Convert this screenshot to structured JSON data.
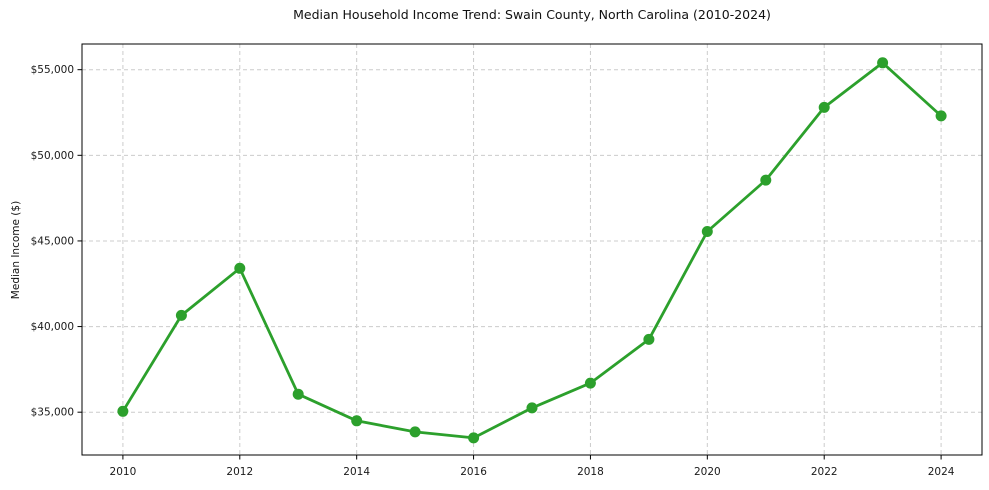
{
  "chart_data": {
    "type": "line",
    "title": "Median Household Income Trend: Swain County, North Carolina (2010-2024)",
    "xlabel": "",
    "ylabel": "Median Income ($)",
    "x": [
      2010,
      2011,
      2012,
      2013,
      2014,
      2015,
      2016,
      2017,
      2018,
      2019,
      2020,
      2021,
      2022,
      2023,
      2024
    ],
    "values": [
      35050,
      40650,
      43400,
      36050,
      34500,
      33850,
      33500,
      35250,
      36700,
      39250,
      45550,
      48550,
      52800,
      55400,
      52300
    ],
    "xlim": [
      2009.3,
      2024.7
    ],
    "ylim": [
      32500,
      56500
    ],
    "xticks": [
      2010,
      2012,
      2014,
      2016,
      2018,
      2020,
      2022,
      2024
    ],
    "yticks": [
      35000,
      40000,
      45000,
      50000,
      55000
    ],
    "ytick_labels": [
      "$35,000",
      "$40,000",
      "$45,000",
      "$50,000",
      "$55,000"
    ],
    "grid": true,
    "grid_style": "dashed",
    "legend": "none",
    "colors": {
      "line": "#2ca02c",
      "marker": "#2ca02c",
      "grid": "#cccccc",
      "spine": "#000000",
      "tick_text": "#1a1a1a",
      "background": "#ffffff"
    }
  }
}
